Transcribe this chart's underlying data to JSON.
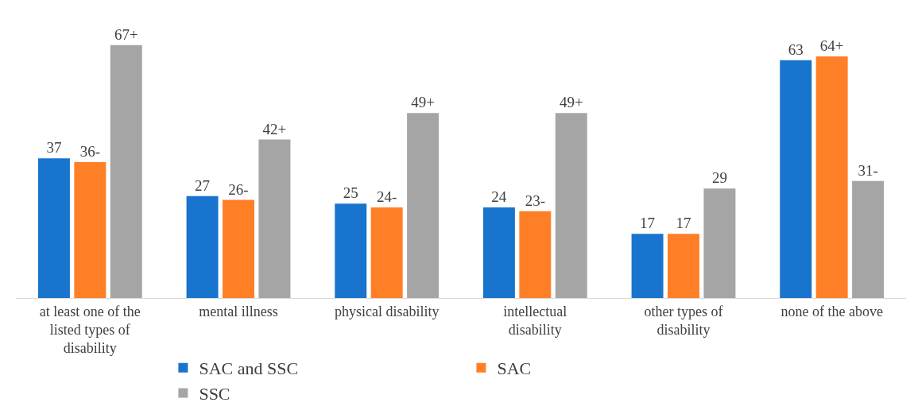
{
  "chart_data": {
    "type": "bar",
    "categories": [
      "at least one of the listed types of disability",
      "mental illness",
      "physical disability",
      "intellectual disability",
      "other types of disability",
      "none of the above"
    ],
    "legend": "bottom",
    "grid": false,
    "series": [
      {
        "name": "SAC and SSC",
        "color": "#1874cd",
        "values": [
          37,
          27,
          25,
          24,
          17,
          63
        ],
        "value_labels": [
          "37",
          "27",
          "25",
          "24",
          "17",
          "63"
        ]
      },
      {
        "name": "SAC",
        "color": "#ff7f27",
        "values": [
          36,
          26,
          24,
          23,
          17,
          64
        ],
        "value_labels": [
          "36-",
          "26-",
          "24-",
          "23-",
          "17",
          "64+"
        ]
      },
      {
        "name": "SSC",
        "color": "#a5a5a5",
        "values": [
          67,
          42,
          49,
          49,
          29,
          31
        ],
        "value_labels": [
          "67+",
          "42+",
          "49+",
          "49+",
          "29",
          "31-"
        ]
      }
    ]
  }
}
